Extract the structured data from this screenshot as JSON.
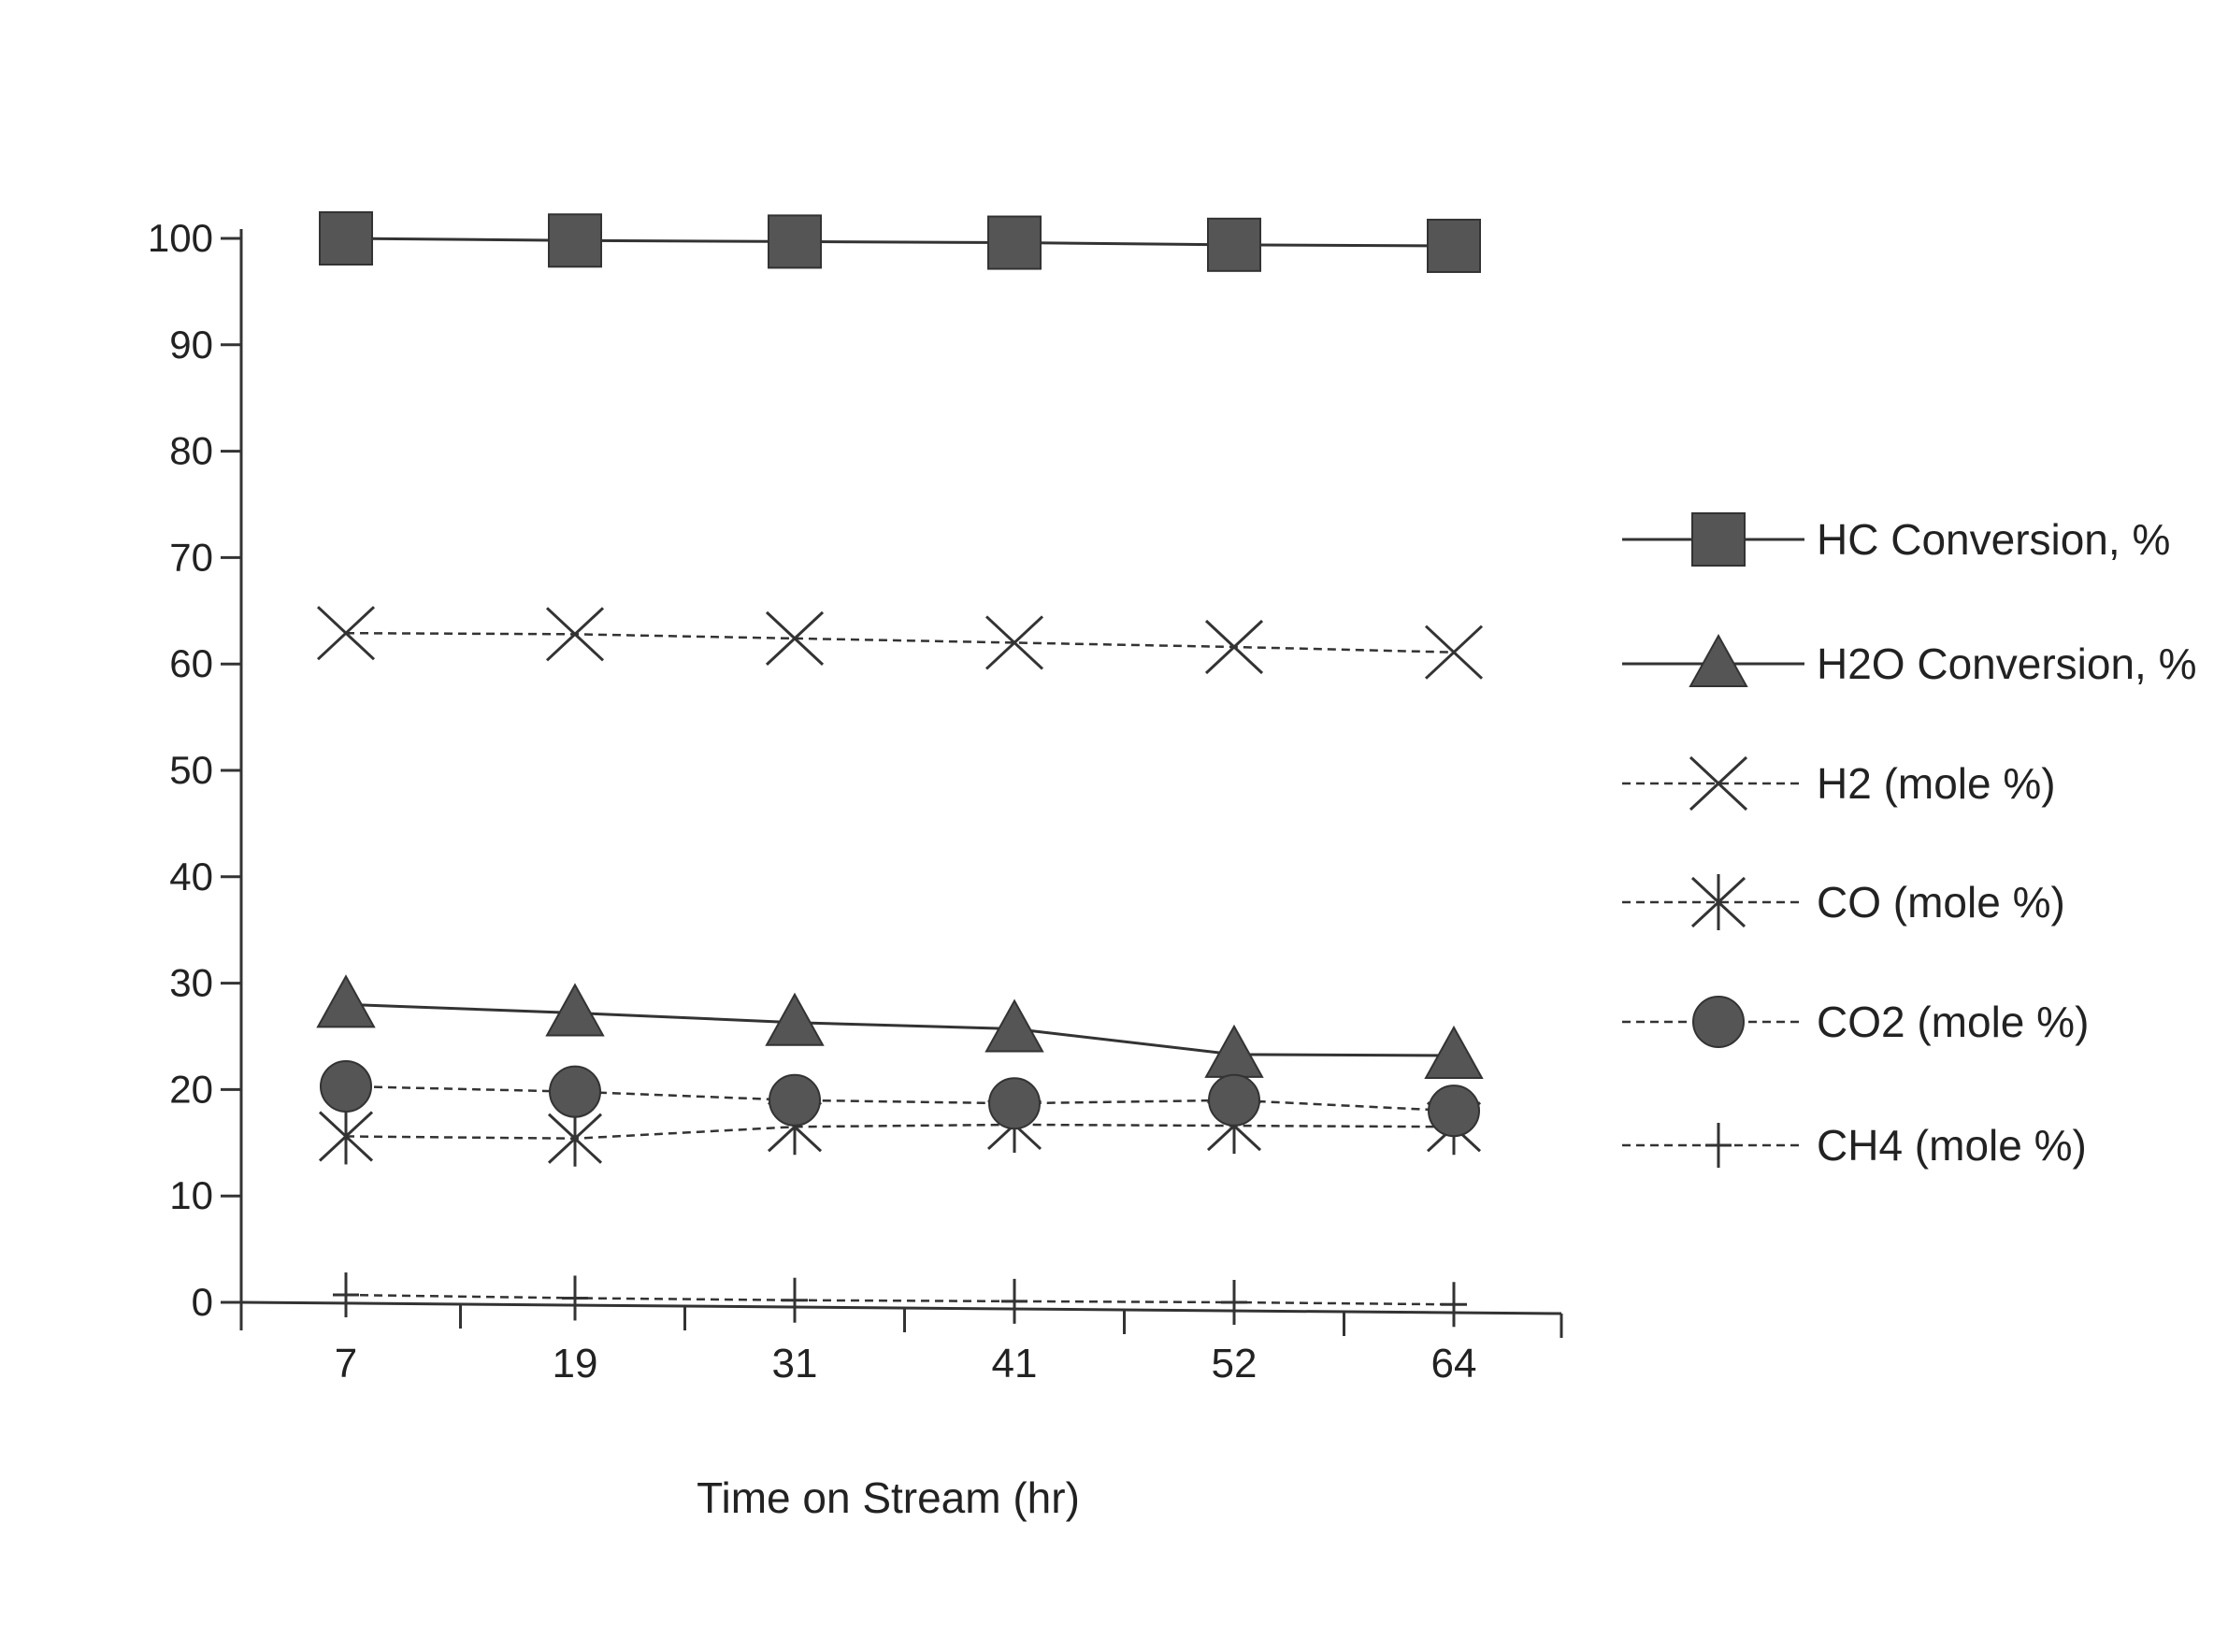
{
  "chart_data": {
    "type": "line",
    "title": "",
    "xlabel": "Time on Stream (hr)",
    "ylabel": "",
    "ylim": [
      0,
      100
    ],
    "yticks": [
      0,
      10,
      20,
      30,
      40,
      50,
      60,
      70,
      80,
      90,
      100
    ],
    "categories": [
      "7",
      "19",
      "31",
      "41",
      "52",
      "64"
    ],
    "grid": false,
    "legend_position": "right",
    "series": [
      {
        "name": "HC Conversion, %",
        "marker": "square",
        "line": "solid",
        "color": "#555555",
        "values": [
          100,
          99.8,
          99.7,
          99.6,
          99.4,
          99.3
        ]
      },
      {
        "name": "H2O Conversion, %",
        "marker": "triangle",
        "line": "solid",
        "color": "#555555",
        "values": [
          28,
          27.2,
          26.3,
          25.7,
          23.3,
          23.2
        ]
      },
      {
        "name": "H2 (mole %)",
        "marker": "x",
        "line": "dashed",
        "color": "#333333",
        "values": [
          62.9,
          62.8,
          62.4,
          62,
          61.6,
          61.1
        ]
      },
      {
        "name": "CO (mole %)",
        "marker": "asterisk",
        "line": "dashed",
        "color": "#333333",
        "values": [
          15.6,
          15.4,
          16.5,
          16.7,
          16.6,
          16.5
        ]
      },
      {
        "name": "CO2 (mole %)",
        "marker": "circle",
        "line": "dashed",
        "color": "#555555",
        "values": [
          20.3,
          19.8,
          19,
          18.7,
          19,
          18
        ]
      },
      {
        "name": "CH4 (mole %)",
        "marker": "plus",
        "line": "dashed",
        "color": "#333333",
        "values": [
          0.7,
          0.4,
          0.2,
          0.1,
          0,
          -0.2
        ]
      }
    ]
  }
}
